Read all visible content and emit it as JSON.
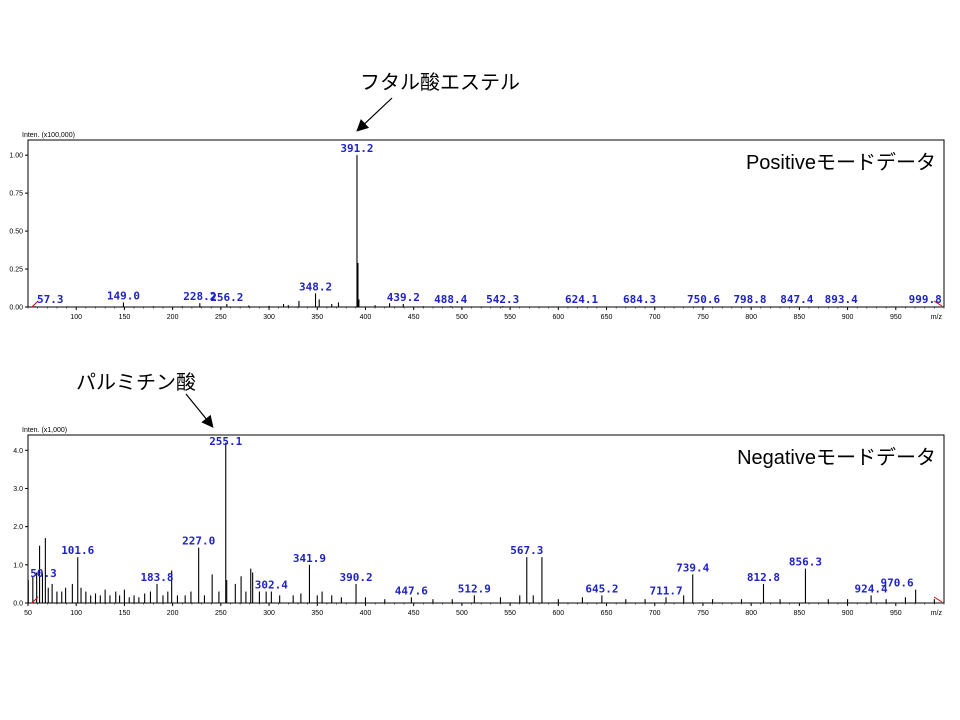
{
  "annotations": {
    "phthalate": "フタル酸エステル",
    "palmitic": "パルミチン酸"
  },
  "chart_data": [
    {
      "type": "bar",
      "mode_label": "Positiveモードデータ",
      "inten_label": "Inten. (x100,000)",
      "xunit": "m/z",
      "xlim": [
        50,
        1000
      ],
      "ylim": [
        0,
        1.1
      ],
      "xticks": [
        100,
        150,
        200,
        250,
        300,
        350,
        400,
        450,
        500,
        550,
        600,
        650,
        700,
        750,
        800,
        850,
        900,
        950
      ],
      "yticks": [
        0.0,
        0.25,
        0.5,
        0.75,
        1.0
      ],
      "ytick_labels": [
        "0.00",
        "0.25",
        "0.50",
        "0.75",
        "1.00"
      ],
      "peaks": [
        {
          "x": 57.3,
          "y": 0.005
        },
        {
          "x": 91.0,
          "y": 0.004
        },
        {
          "x": 120.0,
          "y": 0.003
        },
        {
          "x": 149.0,
          "y": 0.03
        },
        {
          "x": 180.0,
          "y": 0.005
        },
        {
          "x": 210.0,
          "y": 0.005
        },
        {
          "x": 228.2,
          "y": 0.025
        },
        {
          "x": 241.0,
          "y": 0.004
        },
        {
          "x": 256.2,
          "y": 0.02
        },
        {
          "x": 279.0,
          "y": 0.01
        },
        {
          "x": 300.0,
          "y": 0.008
        },
        {
          "x": 315.0,
          "y": 0.02
        },
        {
          "x": 320.0,
          "y": 0.012
        },
        {
          "x": 331.0,
          "y": 0.04
        },
        {
          "x": 348.2,
          "y": 0.09
        },
        {
          "x": 352.0,
          "y": 0.05
        },
        {
          "x": 365.0,
          "y": 0.02
        },
        {
          "x": 372.0,
          "y": 0.03
        },
        {
          "x": 391.2,
          "y": 1.0
        },
        {
          "x": 392.2,
          "y": 0.29
        },
        {
          "x": 393.2,
          "y": 0.05
        },
        {
          "x": 410.0,
          "y": 0.012
        },
        {
          "x": 425.0,
          "y": 0.025
        },
        {
          "x": 439.2,
          "y": 0.02
        },
        {
          "x": 460.0,
          "y": 0.005
        },
        {
          "x": 488.4,
          "y": 0.006
        },
        {
          "x": 520.0,
          "y": 0.004
        },
        {
          "x": 542.3,
          "y": 0.006
        },
        {
          "x": 580.0,
          "y": 0.003
        },
        {
          "x": 624.1,
          "y": 0.004
        },
        {
          "x": 660.0,
          "y": 0.003
        },
        {
          "x": 684.3,
          "y": 0.004
        },
        {
          "x": 720.0,
          "y": 0.003
        },
        {
          "x": 750.6,
          "y": 0.004
        },
        {
          "x": 798.8,
          "y": 0.004
        },
        {
          "x": 847.4,
          "y": 0.004
        },
        {
          "x": 893.4,
          "y": 0.004
        },
        {
          "x": 999.8,
          "y": 0.003
        }
      ],
      "labels": [
        {
          "text": "57.3",
          "x": 57.3
        },
        {
          "text": "149.0",
          "x": 149.0
        },
        {
          "text": "228.2",
          "x": 228.2
        },
        {
          "text": "256.2",
          "x": 256.2
        },
        {
          "text": "348.2",
          "x": 348.2
        },
        {
          "text": "391.2",
          "x": 391.2
        },
        {
          "text": "439.2",
          "x": 439.2
        },
        {
          "text": "488.4",
          "x": 488.4
        },
        {
          "text": "542.3",
          "x": 542.3
        },
        {
          "text": "624.1",
          "x": 624.1
        },
        {
          "text": "684.3",
          "x": 684.3
        },
        {
          "text": "750.6",
          "x": 750.6
        },
        {
          "text": "798.8",
          "x": 798.8
        },
        {
          "text": "847.4",
          "x": 847.4
        },
        {
          "text": "893.4",
          "x": 893.4
        },
        {
          "text": "999.8",
          "x": 999.8
        }
      ]
    },
    {
      "type": "bar",
      "mode_label": "Negativeモードデータ",
      "inten_label": "Inten. (x1,000)",
      "xunit": "m/z",
      "xlim": [
        50,
        1000
      ],
      "ylim": [
        0,
        4.4
      ],
      "xticks": [
        50,
        100,
        150,
        200,
        250,
        300,
        350,
        400,
        450,
        500,
        550,
        600,
        650,
        700,
        750,
        800,
        850,
        900,
        950
      ],
      "yticks": [
        0.0,
        1.0,
        2.0,
        3.0,
        4.0
      ],
      "ytick_labels": [
        "0.0",
        "1.0",
        "2.0",
        "3.0",
        "4.0"
      ],
      "peaks": [
        {
          "x": 50.3,
          "y": 0.6
        },
        {
          "x": 55.0,
          "y": 0.7
        },
        {
          "x": 59.0,
          "y": 0.8
        },
        {
          "x": 62.0,
          "y": 1.5
        },
        {
          "x": 65.0,
          "y": 0.8
        },
        {
          "x": 68.0,
          "y": 1.7
        },
        {
          "x": 71.0,
          "y": 0.4
        },
        {
          "x": 75.0,
          "y": 0.5
        },
        {
          "x": 80.0,
          "y": 0.3
        },
        {
          "x": 85.0,
          "y": 0.3
        },
        {
          "x": 89.0,
          "y": 0.4
        },
        {
          "x": 96.0,
          "y": 0.5
        },
        {
          "x": 101.6,
          "y": 1.2
        },
        {
          "x": 105.0,
          "y": 0.4
        },
        {
          "x": 110.0,
          "y": 0.3
        },
        {
          "x": 115.0,
          "y": 0.2
        },
        {
          "x": 120.0,
          "y": 0.25
        },
        {
          "x": 125.0,
          "y": 0.2
        },
        {
          "x": 130.0,
          "y": 0.35
        },
        {
          "x": 135.0,
          "y": 0.2
        },
        {
          "x": 141.0,
          "y": 0.3
        },
        {
          "x": 145.0,
          "y": 0.2
        },
        {
          "x": 150.0,
          "y": 0.35
        },
        {
          "x": 155.0,
          "y": 0.15
        },
        {
          "x": 160.0,
          "y": 0.2
        },
        {
          "x": 165.0,
          "y": 0.15
        },
        {
          "x": 171.0,
          "y": 0.25
        },
        {
          "x": 177.0,
          "y": 0.3
        },
        {
          "x": 183.8,
          "y": 0.5
        },
        {
          "x": 190.0,
          "y": 0.2
        },
        {
          "x": 195.0,
          "y": 0.3
        },
        {
          "x": 199.0,
          "y": 0.85
        },
        {
          "x": 205.0,
          "y": 0.2
        },
        {
          "x": 213.0,
          "y": 0.2
        },
        {
          "x": 219.0,
          "y": 0.3
        },
        {
          "x": 227.0,
          "y": 1.45
        },
        {
          "x": 233.0,
          "y": 0.2
        },
        {
          "x": 241.0,
          "y": 0.75
        },
        {
          "x": 248.0,
          "y": 0.3
        },
        {
          "x": 255.1,
          "y": 4.2
        },
        {
          "x": 256.1,
          "y": 0.6
        },
        {
          "x": 265.0,
          "y": 0.5
        },
        {
          "x": 271.0,
          "y": 0.7
        },
        {
          "x": 276.0,
          "y": 0.3
        },
        {
          "x": 281.0,
          "y": 0.9
        },
        {
          "x": 283.0,
          "y": 0.8
        },
        {
          "x": 290.0,
          "y": 0.3
        },
        {
          "x": 297.0,
          "y": 0.3
        },
        {
          "x": 302.4,
          "y": 0.3
        },
        {
          "x": 311.0,
          "y": 0.2
        },
        {
          "x": 325.0,
          "y": 0.2
        },
        {
          "x": 333.0,
          "y": 0.25
        },
        {
          "x": 341.9,
          "y": 1.0
        },
        {
          "x": 350.0,
          "y": 0.2
        },
        {
          "x": 355.0,
          "y": 0.3
        },
        {
          "x": 365.0,
          "y": 0.2
        },
        {
          "x": 375.0,
          "y": 0.15
        },
        {
          "x": 390.2,
          "y": 0.5
        },
        {
          "x": 400.0,
          "y": 0.15
        },
        {
          "x": 420.0,
          "y": 0.1
        },
        {
          "x": 447.6,
          "y": 0.15
        },
        {
          "x": 470.0,
          "y": 0.1
        },
        {
          "x": 490.0,
          "y": 0.1
        },
        {
          "x": 512.9,
          "y": 0.2
        },
        {
          "x": 540.0,
          "y": 0.15
        },
        {
          "x": 560.0,
          "y": 0.2
        },
        {
          "x": 567.3,
          "y": 1.2
        },
        {
          "x": 574.0,
          "y": 0.2
        },
        {
          "x": 583.0,
          "y": 1.2
        },
        {
          "x": 600.0,
          "y": 0.1
        },
        {
          "x": 625.0,
          "y": 0.15
        },
        {
          "x": 645.2,
          "y": 0.2
        },
        {
          "x": 670.0,
          "y": 0.1
        },
        {
          "x": 690.0,
          "y": 0.1
        },
        {
          "x": 711.7,
          "y": 0.15
        },
        {
          "x": 730.0,
          "y": 0.2
        },
        {
          "x": 739.4,
          "y": 0.75
        },
        {
          "x": 760.0,
          "y": 0.1
        },
        {
          "x": 790.0,
          "y": 0.1
        },
        {
          "x": 812.8,
          "y": 0.5
        },
        {
          "x": 830.0,
          "y": 0.1
        },
        {
          "x": 856.3,
          "y": 0.9
        },
        {
          "x": 880.0,
          "y": 0.1
        },
        {
          "x": 900.0,
          "y": 0.1
        },
        {
          "x": 924.4,
          "y": 0.2
        },
        {
          "x": 940.0,
          "y": 0.1
        },
        {
          "x": 960.0,
          "y": 0.15
        },
        {
          "x": 970.6,
          "y": 0.35
        },
        {
          "x": 990.0,
          "y": 0.1
        }
      ],
      "labels": [
        {
          "text": "50.3",
          "x": 50.3
        },
        {
          "text": "101.6",
          "x": 101.6
        },
        {
          "text": "183.8",
          "x": 183.8
        },
        {
          "text": "227.0",
          "x": 227.0
        },
        {
          "text": "255.1",
          "x": 255.1
        },
        {
          "text": "302.4",
          "x": 302.4
        },
        {
          "text": "341.9",
          "x": 341.9
        },
        {
          "text": "390.2",
          "x": 390.2
        },
        {
          "text": "447.6",
          "x": 447.6
        },
        {
          "text": "512.9",
          "x": 512.9
        },
        {
          "text": "567.3",
          "x": 567.3
        },
        {
          "text": "645.2",
          "x": 645.2
        },
        {
          "text": "711.7",
          "x": 711.7
        },
        {
          "text": "739.4",
          "x": 739.4
        },
        {
          "text": "812.8",
          "x": 812.8
        },
        {
          "text": "856.3",
          "x": 856.3
        },
        {
          "text": "924.4",
          "x": 924.4
        },
        {
          "text": "970.6",
          "x": 970.6
        }
      ]
    }
  ]
}
